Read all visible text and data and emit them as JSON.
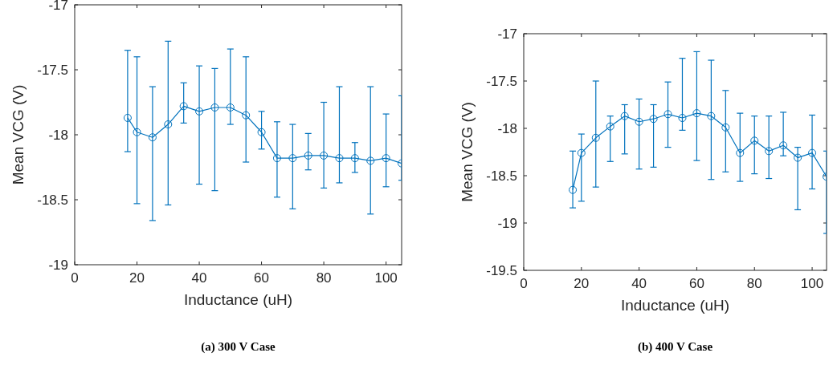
{
  "chart_data": [
    {
      "type": "line",
      "title": "(a) 300 V Case",
      "xlabel": "Inductance (uH)",
      "ylabel": "Mean VCG (V)",
      "xlim": [
        0,
        105
      ],
      "xticks": [
        0,
        20,
        40,
        60,
        80,
        100
      ],
      "ylim": [
        -19,
        -17
      ],
      "yticks": [
        -19,
        -18.5,
        -18,
        -17.5,
        -17
      ],
      "marker": "circle",
      "grid": false,
      "x": [
        17,
        20,
        25,
        30,
        35,
        40,
        45,
        50,
        55,
        60,
        65,
        70,
        75,
        80,
        85,
        90,
        95,
        100,
        105
      ],
      "series": [
        {
          "color": "#0072bd",
          "values": [
            -17.87,
            -17.98,
            -18.02,
            -17.92,
            -17.78,
            -17.82,
            -17.79,
            -17.79,
            -17.85,
            -17.98,
            -18.18,
            -18.18,
            -18.16,
            -18.16,
            -18.18,
            -18.18,
            -18.2,
            -18.18,
            -18.22
          ],
          "errors": [
            [
              -18.13,
              -17.35
            ],
            [
              -18.53,
              -17.4
            ],
            [
              -18.66,
              -17.63
            ],
            [
              -18.54,
              -17.28
            ],
            [
              -17.91,
              -17.6
            ],
            [
              -18.38,
              -17.47
            ],
            [
              -18.43,
              -17.49
            ],
            [
              -17.92,
              -17.34
            ],
            [
              -18.21,
              -17.4
            ],
            [
              -18.11,
              -17.82
            ],
            [
              -18.48,
              -17.9
            ],
            [
              -18.57,
              -17.92
            ],
            [
              -18.27,
              -17.99
            ],
            [
              -18.41,
              -17.75
            ],
            [
              -18.37,
              -17.63
            ],
            [
              -18.29,
              -18.06
            ],
            [
              -18.61,
              -17.63
            ],
            [
              -18.4,
              -17.84
            ],
            [
              -18.35,
              -17.7
            ]
          ]
        }
      ]
    },
    {
      "type": "line",
      "title": "(b) 400 V Case",
      "xlabel": "Inductance (uH)",
      "ylabel": "Mean VCG (V)",
      "xlim": [
        0,
        105
      ],
      "xticks": [
        0,
        20,
        40,
        60,
        80,
        100
      ],
      "ylim": [
        -19.5,
        -17
      ],
      "yticks": [
        -19.5,
        -19,
        -18.5,
        -18,
        -17.5,
        -17
      ],
      "marker": "circle",
      "grid": false,
      "x": [
        17,
        20,
        25,
        30,
        35,
        40,
        45,
        50,
        55,
        60,
        65,
        70,
        75,
        80,
        85,
        90,
        95,
        100,
        105
      ],
      "series": [
        {
          "color": "#0072bd",
          "values": [
            -18.65,
            -18.26,
            -18.1,
            -17.98,
            -17.87,
            -17.93,
            -17.9,
            -17.85,
            -17.89,
            -17.84,
            -17.87,
            -17.99,
            -18.26,
            -18.13,
            -18.24,
            -18.18,
            -18.31,
            -18.26,
            -18.51
          ],
          "errors": [
            [
              -18.84,
              -18.24
            ],
            [
              -18.77,
              -18.06
            ],
            [
              -18.62,
              -17.5
            ],
            [
              -18.35,
              -17.87
            ],
            [
              -18.27,
              -17.75
            ],
            [
              -18.43,
              -17.69
            ],
            [
              -18.41,
              -17.75
            ],
            [
              -18.2,
              -17.51
            ],
            [
              -18.02,
              -17.26
            ],
            [
              -18.34,
              -17.19
            ],
            [
              -18.54,
              -17.28
            ],
            [
              -18.46,
              -17.6
            ],
            [
              -18.56,
              -17.84
            ],
            [
              -18.48,
              -17.87
            ],
            [
              -18.53,
              -17.87
            ],
            [
              -18.29,
              -17.83
            ],
            [
              -18.86,
              -18.2
            ],
            [
              -18.64,
              -17.86
            ],
            [
              -19.11,
              -18.24
            ]
          ]
        }
      ]
    }
  ]
}
